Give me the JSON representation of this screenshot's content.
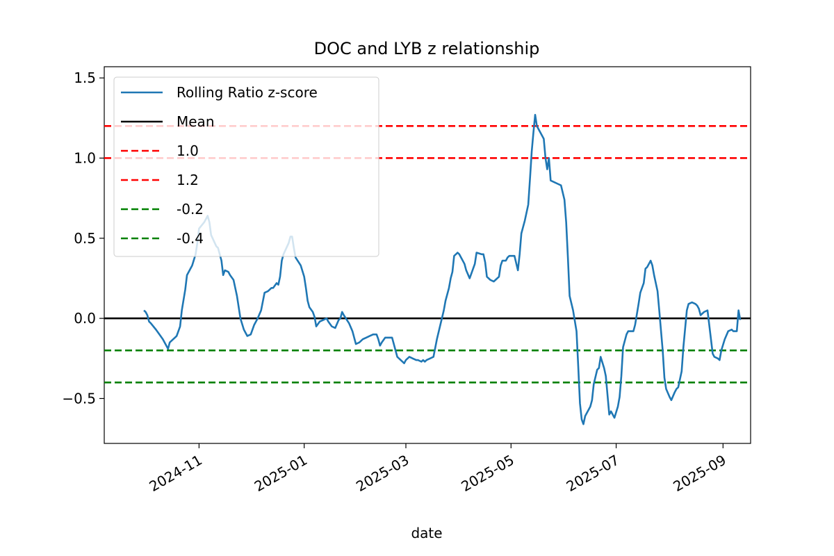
{
  "chart_data": {
    "type": "line",
    "title": "DOC and LYB z relationship",
    "xlabel": "date",
    "ylabel": "",
    "xlim": [
      "2024-09-07",
      "2025-09-17"
    ],
    "ylim": [
      -0.78,
      1.57
    ],
    "x_ticks": [
      {
        "value": "2024-11-01",
        "label": "2024-11"
      },
      {
        "value": "2025-01-01",
        "label": "2025-01"
      },
      {
        "value": "2025-03-01",
        "label": "2025-03"
      },
      {
        "value": "2025-05-01",
        "label": "2025-05"
      },
      {
        "value": "2025-07-01",
        "label": "2025-07"
      },
      {
        "value": "2025-09-01",
        "label": "2025-09"
      }
    ],
    "y_ticks": [
      {
        "value": 1.5,
        "label": "1.5"
      },
      {
        "value": 1.0,
        "label": "1.0"
      },
      {
        "value": 0.5,
        "label": "0.5"
      },
      {
        "value": 0.0,
        "label": "0.0"
      },
      {
        "value": -0.5,
        "label": "−0.5"
      }
    ],
    "grid": false,
    "legend_position": "top-left",
    "series": [
      {
        "name": "Rolling Ratio z-score",
        "color": "#1f77b4",
        "points": [
          [
            "2024-09-30",
            0.05
          ],
          [
            "2024-10-01",
            0.04
          ],
          [
            "2024-10-02",
            0.02
          ],
          [
            "2024-10-03",
            -0.02
          ],
          [
            "2024-10-04",
            -0.03
          ],
          [
            "2024-10-07",
            -0.07
          ],
          [
            "2024-10-09",
            -0.1
          ],
          [
            "2024-10-11",
            -0.13
          ],
          [
            "2024-10-14",
            -0.19
          ],
          [
            "2024-10-15",
            -0.15
          ],
          [
            "2024-10-17",
            -0.13
          ],
          [
            "2024-10-18",
            -0.12
          ],
          [
            "2024-10-19",
            -0.11
          ],
          [
            "2024-10-21",
            -0.05
          ],
          [
            "2024-10-22",
            0.05
          ],
          [
            "2024-10-24",
            0.18
          ],
          [
            "2024-10-25",
            0.27
          ],
          [
            "2024-10-28",
            0.33
          ],
          [
            "2024-10-30",
            0.4
          ],
          [
            "2024-10-31",
            0.47
          ],
          [
            "2024-11-01",
            0.56
          ],
          [
            "2024-11-04",
            0.6
          ],
          [
            "2024-11-05",
            0.62
          ],
          [
            "2024-11-06",
            0.64
          ],
          [
            "2024-11-07",
            0.6
          ],
          [
            "2024-11-08",
            0.52
          ],
          [
            "2024-11-11",
            0.45
          ],
          [
            "2024-11-12",
            0.44
          ],
          [
            "2024-11-13",
            0.4
          ],
          [
            "2024-11-14",
            0.36
          ],
          [
            "2024-11-15",
            0.27
          ],
          [
            "2024-11-16",
            0.3
          ],
          [
            "2024-11-18",
            0.29
          ],
          [
            "2024-11-19",
            0.27
          ],
          [
            "2024-11-21",
            0.24
          ],
          [
            "2024-11-23",
            0.14
          ],
          [
            "2024-11-25",
            0.0
          ],
          [
            "2024-11-27",
            -0.07
          ],
          [
            "2024-11-29",
            -0.11
          ],
          [
            "2024-12-01",
            -0.1
          ],
          [
            "2024-12-03",
            -0.04
          ],
          [
            "2024-12-05",
            0.0
          ],
          [
            "2024-12-07",
            0.05
          ],
          [
            "2024-12-09",
            0.16
          ],
          [
            "2024-12-11",
            0.17
          ],
          [
            "2024-12-13",
            0.19
          ],
          [
            "2024-12-14",
            0.19
          ],
          [
            "2024-12-16",
            0.22
          ],
          [
            "2024-12-17",
            0.21
          ],
          [
            "2024-12-18",
            0.26
          ],
          [
            "2024-12-19",
            0.36
          ],
          [
            "2024-12-20",
            0.4
          ],
          [
            "2024-12-23",
            0.47
          ],
          [
            "2024-12-24",
            0.51
          ],
          [
            "2024-12-25",
            0.51
          ],
          [
            "2024-12-26",
            0.44
          ],
          [
            "2024-12-27",
            0.38
          ],
          [
            "2024-12-30",
            0.33
          ],
          [
            "2025-01-01",
            0.26
          ],
          [
            "2025-01-02",
            0.19
          ],
          [
            "2025-01-03",
            0.11
          ],
          [
            "2025-01-04",
            0.07
          ],
          [
            "2025-01-06",
            0.04
          ],
          [
            "2025-01-07",
            0.01
          ],
          [
            "2025-01-08",
            -0.05
          ],
          [
            "2025-01-10",
            -0.02
          ],
          [
            "2025-01-12",
            -0.01
          ],
          [
            "2025-01-14",
            0.0
          ],
          [
            "2025-01-15",
            -0.02
          ],
          [
            "2025-01-17",
            -0.05
          ],
          [
            "2025-01-19",
            -0.06
          ],
          [
            "2025-01-21",
            -0.01
          ],
          [
            "2025-01-22",
            0.0
          ],
          [
            "2025-01-23",
            0.04
          ],
          [
            "2025-01-24",
            0.02
          ],
          [
            "2025-01-27",
            -0.03
          ],
          [
            "2025-01-29",
            -0.08
          ],
          [
            "2025-01-31",
            -0.16
          ],
          [
            "2025-02-02",
            -0.15
          ],
          [
            "2025-02-04",
            -0.13
          ],
          [
            "2025-02-06",
            -0.12
          ],
          [
            "2025-02-08",
            -0.11
          ],
          [
            "2025-02-10",
            -0.1
          ],
          [
            "2025-02-12",
            -0.1
          ],
          [
            "2025-02-13",
            -0.13
          ],
          [
            "2025-02-14",
            -0.17
          ],
          [
            "2025-02-15",
            -0.15
          ],
          [
            "2025-02-17",
            -0.12
          ],
          [
            "2025-02-19",
            -0.12
          ],
          [
            "2025-02-21",
            -0.12
          ],
          [
            "2025-02-22",
            -0.16
          ],
          [
            "2025-02-24",
            -0.24
          ],
          [
            "2025-02-26",
            -0.26
          ],
          [
            "2025-02-28",
            -0.28
          ],
          [
            "2025-03-01",
            -0.26
          ],
          [
            "2025-03-03",
            -0.24
          ],
          [
            "2025-03-05",
            -0.25
          ],
          [
            "2025-03-07",
            -0.26
          ],
          [
            "2025-03-08",
            -0.26
          ],
          [
            "2025-03-10",
            -0.27
          ],
          [
            "2025-03-11",
            -0.26
          ],
          [
            "2025-03-12",
            -0.27
          ],
          [
            "2025-03-13",
            -0.26
          ],
          [
            "2025-03-15",
            -0.25
          ],
          [
            "2025-03-17",
            -0.24
          ],
          [
            "2025-03-19",
            -0.13
          ],
          [
            "2025-03-21",
            -0.04
          ],
          [
            "2025-03-23",
            0.05
          ],
          [
            "2025-03-24",
            0.11
          ],
          [
            "2025-03-26",
            0.19
          ],
          [
            "2025-03-27",
            0.25
          ],
          [
            "2025-03-28",
            0.29
          ],
          [
            "2025-03-29",
            0.39
          ],
          [
            "2025-03-31",
            0.41
          ],
          [
            "2025-04-01",
            0.4
          ],
          [
            "2025-04-02",
            0.38
          ],
          [
            "2025-04-04",
            0.34
          ],
          [
            "2025-04-05",
            0.3
          ],
          [
            "2025-04-07",
            0.25
          ],
          [
            "2025-04-08",
            0.28
          ],
          [
            "2025-04-10",
            0.34
          ],
          [
            "2025-04-11",
            0.41
          ],
          [
            "2025-04-14",
            0.4
          ],
          [
            "2025-04-15",
            0.4
          ],
          [
            "2025-04-16",
            0.35
          ],
          [
            "2025-04-17",
            0.26
          ],
          [
            "2025-04-19",
            0.24
          ],
          [
            "2025-04-21",
            0.23
          ],
          [
            "2025-04-22",
            0.24
          ],
          [
            "2025-04-24",
            0.26
          ],
          [
            "2025-04-25",
            0.33
          ],
          [
            "2025-04-26",
            0.36
          ],
          [
            "2025-04-28",
            0.36
          ],
          [
            "2025-04-29",
            0.38
          ],
          [
            "2025-04-30",
            0.39
          ],
          [
            "2025-05-02",
            0.39
          ],
          [
            "2025-05-03",
            0.39
          ],
          [
            "2025-05-05",
            0.3
          ],
          [
            "2025-05-06",
            0.4
          ],
          [
            "2025-05-07",
            0.53
          ],
          [
            "2025-05-09",
            0.61
          ],
          [
            "2025-05-11",
            0.71
          ],
          [
            "2025-05-12",
            0.87
          ],
          [
            "2025-05-13",
            1.04
          ],
          [
            "2025-05-14",
            1.16
          ],
          [
            "2025-05-15",
            1.27
          ],
          [
            "2025-05-16",
            1.2
          ],
          [
            "2025-05-19",
            1.14
          ],
          [
            "2025-05-20",
            1.12
          ],
          [
            "2025-05-21",
            1.0
          ],
          [
            "2025-05-22",
            0.93
          ],
          [
            "2025-05-23",
            1.0
          ],
          [
            "2025-05-24",
            0.86
          ],
          [
            "2025-05-26",
            0.85
          ],
          [
            "2025-05-28",
            0.84
          ],
          [
            "2025-05-30",
            0.83
          ],
          [
            "2025-06-01",
            0.74
          ],
          [
            "2025-06-02",
            0.6
          ],
          [
            "2025-06-03",
            0.38
          ],
          [
            "2025-06-04",
            0.14
          ],
          [
            "2025-06-06",
            0.05
          ],
          [
            "2025-06-08",
            -0.08
          ],
          [
            "2025-06-09",
            -0.3
          ],
          [
            "2025-06-10",
            -0.53
          ],
          [
            "2025-06-11",
            -0.63
          ],
          [
            "2025-06-12",
            -0.66
          ],
          [
            "2025-06-13",
            -0.61
          ],
          [
            "2025-06-16",
            -0.55
          ],
          [
            "2025-06-17",
            -0.51
          ],
          [
            "2025-06-18",
            -0.41
          ],
          [
            "2025-06-20",
            -0.32
          ],
          [
            "2025-06-21",
            -0.31
          ],
          [
            "2025-06-22",
            -0.24
          ],
          [
            "2025-06-24",
            -0.31
          ],
          [
            "2025-06-25",
            -0.36
          ],
          [
            "2025-06-27",
            -0.6
          ],
          [
            "2025-06-28",
            -0.58
          ],
          [
            "2025-06-30",
            -0.62
          ],
          [
            "2025-07-02",
            -0.55
          ],
          [
            "2025-07-03",
            -0.49
          ],
          [
            "2025-07-04",
            -0.36
          ],
          [
            "2025-07-05",
            -0.18
          ],
          [
            "2025-07-07",
            -0.1
          ],
          [
            "2025-07-08",
            -0.08
          ],
          [
            "2025-07-10",
            -0.08
          ],
          [
            "2025-07-11",
            -0.08
          ],
          [
            "2025-07-12",
            -0.04
          ],
          [
            "2025-07-14",
            0.09
          ],
          [
            "2025-07-15",
            0.16
          ],
          [
            "2025-07-17",
            0.22
          ],
          [
            "2025-07-18",
            0.31
          ],
          [
            "2025-07-19",
            0.32
          ],
          [
            "2025-07-21",
            0.36
          ],
          [
            "2025-07-22",
            0.33
          ],
          [
            "2025-07-23",
            0.27
          ],
          [
            "2025-07-25",
            0.17
          ],
          [
            "2025-07-26",
            0.05
          ],
          [
            "2025-07-28",
            -0.2
          ],
          [
            "2025-07-29",
            -0.37
          ],
          [
            "2025-07-30",
            -0.44
          ],
          [
            "2025-08-01",
            -0.49
          ],
          [
            "2025-08-02",
            -0.51
          ],
          [
            "2025-08-04",
            -0.46
          ],
          [
            "2025-08-05",
            -0.44
          ],
          [
            "2025-08-06",
            -0.43
          ],
          [
            "2025-08-07",
            -0.38
          ],
          [
            "2025-08-08",
            -0.33
          ],
          [
            "2025-08-09",
            -0.18
          ],
          [
            "2025-08-11",
            0.05
          ],
          [
            "2025-08-12",
            0.09
          ],
          [
            "2025-08-14",
            0.1
          ],
          [
            "2025-08-16",
            0.09
          ],
          [
            "2025-08-17",
            0.08
          ],
          [
            "2025-08-18",
            0.06
          ],
          [
            "2025-08-19",
            0.02
          ],
          [
            "2025-08-21",
            0.04
          ],
          [
            "2025-08-23",
            0.05
          ],
          [
            "2025-08-24",
            -0.04
          ],
          [
            "2025-08-26",
            -0.22
          ],
          [
            "2025-08-27",
            -0.24
          ],
          [
            "2025-08-29",
            -0.25
          ],
          [
            "2025-08-30",
            -0.26
          ],
          [
            "2025-08-31",
            -0.2
          ],
          [
            "2025-09-02",
            -0.13
          ],
          [
            "2025-09-04",
            -0.08
          ],
          [
            "2025-09-06",
            -0.07
          ],
          [
            "2025-09-07",
            -0.08
          ],
          [
            "2025-09-09",
            -0.08
          ],
          [
            "2025-09-10",
            0.05
          ],
          [
            "2025-09-11",
            -0.01
          ]
        ]
      }
    ],
    "reference_lines": [
      {
        "name": "Mean",
        "value": 0.0,
        "color": "#000000",
        "style": "solid"
      },
      {
        "name": "1.0",
        "value": 1.0,
        "color": "#ff0000",
        "style": "dashed"
      },
      {
        "name": "1.2",
        "value": 1.2,
        "color": "#ff0000",
        "style": "dashed"
      },
      {
        "name": "-0.2",
        "value": -0.2,
        "color": "#008000",
        "style": "dashed"
      },
      {
        "name": "-0.4",
        "value": -0.4,
        "color": "#008000",
        "style": "dashed"
      }
    ]
  }
}
